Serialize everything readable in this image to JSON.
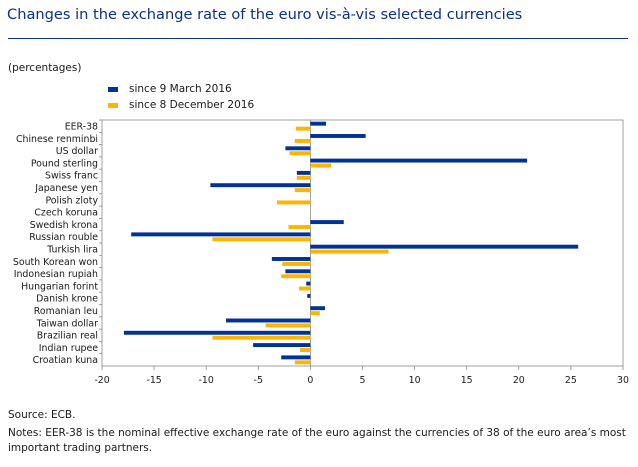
{
  "title": "Changes in the exchange rate of the euro vis-à-vis selected currencies",
  "units": "(percentages)",
  "legend": [
    {
      "label": "since 9 March 2016",
      "color": "#003399"
    },
    {
      "label": "since  8 December 2016",
      "color": "#ffb400"
    }
  ],
  "source": "Source: ECB.",
  "notes": "Notes: EER-38 is the nominal effective exchange rate of the euro against the currencies of 38 of the euro area’s most important trading partners.",
  "chart_data": {
    "type": "bar",
    "orientation": "horizontal",
    "title": "Changes in the exchange rate of the euro vis-à-vis selected currencies",
    "ylabel": "(percentages)",
    "xlim": [
      -20,
      30
    ],
    "xticks": [
      -20,
      -15,
      -10,
      -5,
      0,
      5,
      10,
      15,
      20,
      25,
      30
    ],
    "grid": false,
    "categories": [
      "EER-38",
      "Chinese renminbi",
      "US dollar",
      "Pound sterling",
      "Swiss franc",
      "Japanese yen",
      "Polish zloty",
      "Czech koruna",
      "Swedish krona",
      "Russian rouble",
      "Turkish lira",
      "South Korean won",
      "Indonesian rupiah",
      "Hungarian forint",
      "Danish krone",
      "Romanian leu",
      "Taiwan dollar",
      "Brazilian real",
      "Indian rupee",
      "Croatian kuna"
    ],
    "series": [
      {
        "name": "since 9 March 2016",
        "color": "#003399",
        "values": [
          1.5,
          5.3,
          -2.4,
          20.8,
          -1.3,
          -9.6,
          0.0,
          0.0,
          3.2,
          -17.2,
          25.7,
          -3.7,
          -2.4,
          -0.4,
          -0.3,
          1.4,
          -8.1,
          -17.9,
          -5.5,
          -2.8
        ]
      },
      {
        "name": "since  8 December 2016",
        "color": "#ffb400",
        "values": [
          -1.4,
          -1.5,
          -2.0,
          2.0,
          -1.3,
          -1.5,
          -3.2,
          0.0,
          -2.1,
          -9.4,
          7.5,
          -2.7,
          -2.8,
          -1.1,
          0.0,
          0.9,
          -4.3,
          -9.4,
          -1.0,
          -1.5
        ]
      }
    ]
  }
}
